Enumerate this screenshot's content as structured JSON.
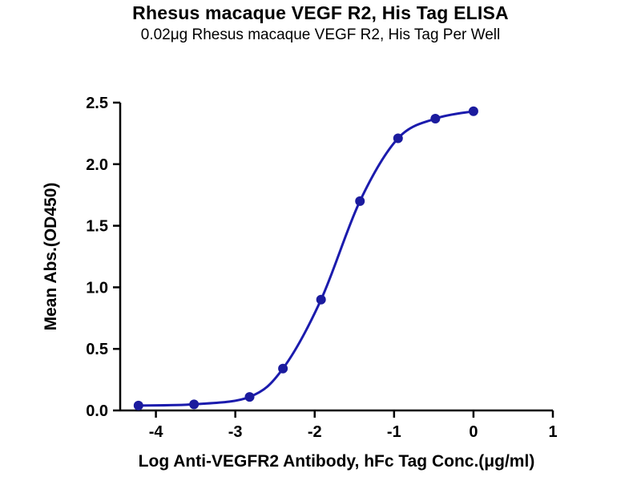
{
  "page": {
    "background": "#ffffff"
  },
  "header": {
    "title": "Rhesus macaque VEGF R2, His Tag ELISA",
    "subtitle": "0.02μg Rhesus macaque VEGF R2, His Tag Per Well"
  },
  "chart_data": {
    "type": "line",
    "title": "Rhesus macaque VEGF R2, His Tag ELISA",
    "subtitle": "0.02μg Rhesus macaque VEGF R2, His Tag Per Well",
    "xlabel": "Log Anti-VEGFR2 Antibody, hFc Tag Conc.(μg/ml)",
    "ylabel": "Mean Abs.(OD450)",
    "x": [
      -4.22,
      -3.52,
      -2.82,
      -2.4,
      -1.92,
      -1.43,
      -0.95,
      -0.48,
      0.0
    ],
    "y": [
      0.04,
      0.05,
      0.11,
      0.34,
      0.9,
      1.7,
      2.21,
      2.37,
      2.43
    ],
    "xlim": [
      -4.45,
      1.0
    ],
    "ylim": [
      0.0,
      2.5
    ],
    "x_ticks": [
      -4,
      -3,
      -2,
      -1,
      0,
      1
    ],
    "x_tick_labels": [
      "-4",
      "-3",
      "-2",
      "-1",
      "0",
      "1"
    ],
    "y_ticks": [
      0.0,
      0.5,
      1.0,
      1.5,
      2.0,
      2.5
    ],
    "y_tick_labels": [
      "0.0",
      "0.5",
      "1.0",
      "1.5",
      "2.0",
      "2.5"
    ],
    "grid": false,
    "legend": null,
    "line_color": "#1b1bad",
    "marker_color": "#1b1b9e",
    "axis_color": "#000000"
  }
}
